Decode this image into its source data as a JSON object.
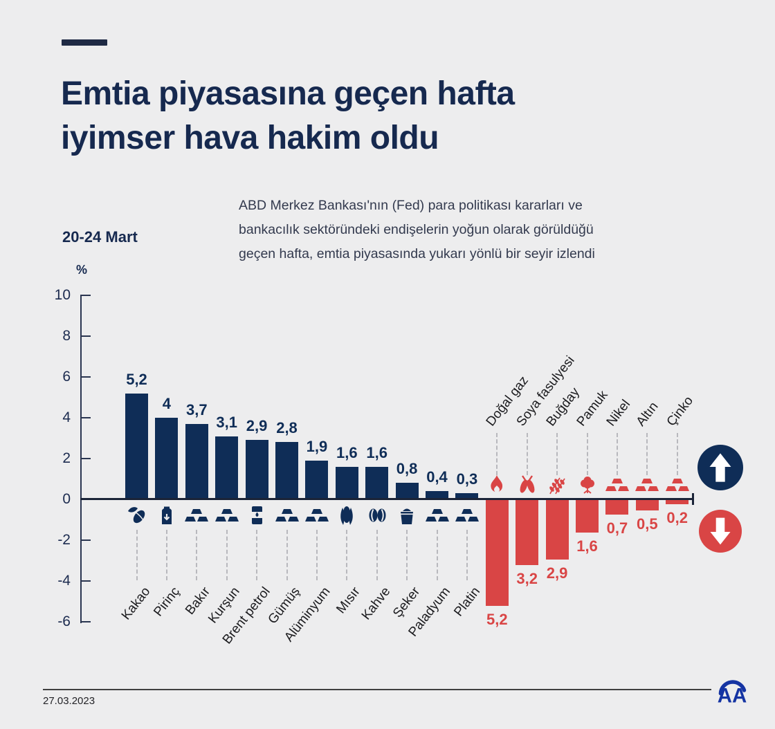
{
  "title": {
    "line1": "Emtia piyasasına geçen hafta",
    "line2": "iyimser hava hakim oldu"
  },
  "subtitle": "ABD Merkez Bankası'nın (Fed) para politikası kararları ve\nbankacılık sektöründeki endişelerin yoğun olarak görüldüğü\ngeçen hafta, emtia piyasasında yukarı yönlü bir seyir izlendi",
  "footer": {
    "date": "27.03.2023",
    "logo_text": "AA"
  },
  "colors": {
    "positive": "#0F2D57",
    "negative": "#D94545",
    "background": "#EDEDEE",
    "title_text": "#16294F",
    "body_text": "#333A4E",
    "axis": "#1B2438",
    "logo_blue": "#1534A3"
  },
  "chart_data": {
    "type": "bar",
    "period": "20-24 Mart",
    "ylabel": "%",
    "ylim": [
      -6,
      10
    ],
    "yticks": [
      10,
      8,
      6,
      4,
      2,
      0,
      -2,
      -4,
      -6
    ],
    "grid": false,
    "decimal_separator": ",",
    "legend": [
      {
        "icon": "up-arrow-icon",
        "meaning": "rising",
        "color": "#0F2D57"
      },
      {
        "icon": "down-arrow-icon",
        "meaning": "falling",
        "color": "#D94545"
      }
    ],
    "series": [
      {
        "direction": "up",
        "color": "#0F2D57",
        "items": [
          {
            "label": "Kakao",
            "value": 5.2,
            "icon": "cocoa-pod-icon"
          },
          {
            "label": "Pirinç",
            "value": 4,
            "icon": "rice-sack-icon"
          },
          {
            "label": "Bakır",
            "value": 3.7,
            "icon": "metal-ingots-icon"
          },
          {
            "label": "Kurşun",
            "value": 3.1,
            "icon": "metal-ingots-icon"
          },
          {
            "label": "Brent petrol",
            "value": 2.9,
            "icon": "oil-barrel-icon"
          },
          {
            "label": "Gümüş",
            "value": 2.8,
            "icon": "metal-ingots-icon"
          },
          {
            "label": "Alüminyum",
            "value": 1.9,
            "icon": "metal-ingots-icon"
          },
          {
            "label": "Mısır",
            "value": 1.6,
            "icon": "corn-icon"
          },
          {
            "label": "Kahve",
            "value": 1.6,
            "icon": "coffee-beans-icon"
          },
          {
            "label": "Şeker",
            "value": 0.8,
            "icon": "sugar-sack-icon"
          },
          {
            "label": "Paladyum",
            "value": 0.4,
            "icon": "metal-ingots-icon"
          },
          {
            "label": "Platin",
            "value": 0.3,
            "icon": "metal-ingots-icon"
          }
        ]
      },
      {
        "direction": "down",
        "color": "#D94545",
        "items": [
          {
            "label": "Doğal gaz",
            "value": 5.2,
            "icon": "flame-icon"
          },
          {
            "label": "Soya fasulyesi",
            "value": 3.2,
            "icon": "soybean-pods-icon"
          },
          {
            "label": "Buğday",
            "value": 2.9,
            "icon": "wheat-icon"
          },
          {
            "label": "Pamuk",
            "value": 1.6,
            "icon": "cotton-icon"
          },
          {
            "label": "Nikel",
            "value": 0.7,
            "icon": "metal-ingots-icon"
          },
          {
            "label": "Altın",
            "value": 0.5,
            "icon": "metal-ingots-icon"
          },
          {
            "label": "Çinko",
            "value": 0.2,
            "icon": "metal-ingots-icon"
          }
        ]
      }
    ]
  }
}
